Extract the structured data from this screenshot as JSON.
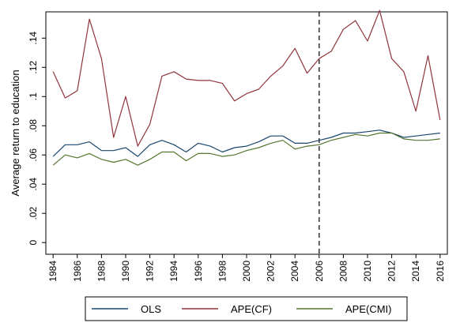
{
  "chart_data": {
    "type": "line",
    "xlabel": "",
    "ylabel": "Average return to education",
    "xlim": [
      1983.4,
      2016.6
    ],
    "ylim": [
      -0.008,
      0.158
    ],
    "x_ticks": [
      1984,
      1986,
      1988,
      1990,
      1992,
      1994,
      1996,
      1998,
      2000,
      2002,
      2004,
      2006,
      2008,
      2010,
      2012,
      2014,
      2016
    ],
    "y_ticks": [
      {
        "value": 0,
        "label": "0"
      },
      {
        "value": 0.02,
        "label": ".02"
      },
      {
        "value": 0.04,
        "label": ".04"
      },
      {
        "value": 0.06,
        "label": ".06"
      },
      {
        "value": 0.08,
        "label": ".08"
      },
      {
        "value": 0.1,
        "label": ".1"
      },
      {
        "value": 0.12,
        "label": ".12"
      },
      {
        "value": 0.14,
        "label": ".14"
      }
    ],
    "grid": false,
    "legend_position": "bottom",
    "vertical_line": {
      "x": 2006,
      "style": "dashed",
      "color": "#333333"
    },
    "x": [
      1984,
      1985,
      1986,
      1987,
      1988,
      1989,
      1990,
      1991,
      1992,
      1993,
      1994,
      1995,
      1996,
      1997,
      1998,
      1999,
      2000,
      2001,
      2002,
      2003,
      2004,
      2005,
      2006,
      2007,
      2008,
      2009,
      2010,
      2011,
      2012,
      2013,
      2014,
      2015,
      2016
    ],
    "series": [
      {
        "name": "OLS",
        "color": "#1a476f",
        "values": [
          0.059,
          0.067,
          0.067,
          0.069,
          0.063,
          0.063,
          0.065,
          0.059,
          0.067,
          0.07,
          0.067,
          0.062,
          0.068,
          0.066,
          0.062,
          0.065,
          0.066,
          0.069,
          0.073,
          0.073,
          0.068,
          0.068,
          0.07,
          0.072,
          0.075,
          0.075,
          0.076,
          0.077,
          0.075,
          0.072,
          0.073,
          0.074,
          0.075
        ]
      },
      {
        "name": "APE(CF)",
        "color": "#90353b",
        "values": [
          0.117,
          0.099,
          0.104,
          0.153,
          0.126,
          0.072,
          0.1,
          0.066,
          0.081,
          0.114,
          0.117,
          0.112,
          0.111,
          0.111,
          0.109,
          0.097,
          0.102,
          0.105,
          0.114,
          0.121,
          0.133,
          0.116,
          0.126,
          0.131,
          0.146,
          0.152,
          0.138,
          0.159,
          0.126,
          0.117,
          0.09,
          0.128,
          0.084
        ]
      },
      {
        "name": "APE(CMI)",
        "color": "#55752f",
        "values": [
          0.053,
          0.06,
          0.058,
          0.061,
          0.057,
          0.055,
          0.057,
          0.053,
          0.057,
          0.062,
          0.062,
          0.056,
          0.061,
          0.061,
          0.059,
          0.06,
          0.063,
          0.065,
          0.068,
          0.07,
          0.064,
          0.066,
          0.067,
          0.07,
          0.072,
          0.074,
          0.073,
          0.075,
          0.075,
          0.071,
          0.07,
          0.07,
          0.071
        ]
      }
    ]
  }
}
